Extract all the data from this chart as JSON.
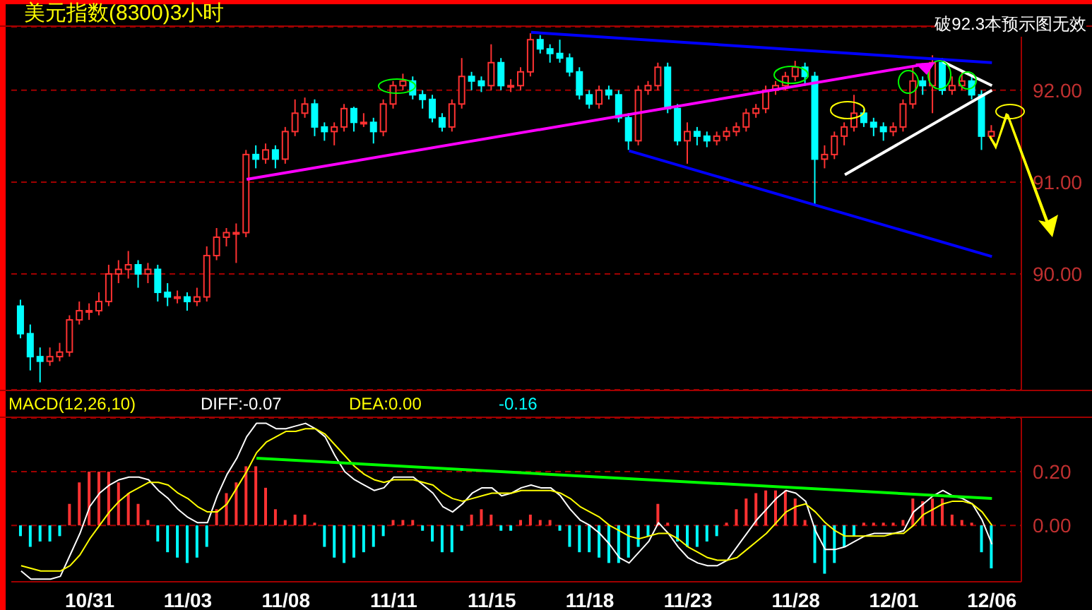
{
  "chart_data": [
    {
      "type": "candlestick",
      "title": "美元指数(8300)3小时",
      "annotations": [
        "破92.3本预示图无效"
      ],
      "categories": [
        null,
        null,
        null,
        null,
        null,
        null,
        null,
        null,
        null,
        null,
        null,
        null,
        null,
        null,
        null,
        null,
        null,
        null,
        null,
        null,
        null,
        null,
        null,
        null,
        null,
        null,
        null,
        null,
        null,
        null,
        null,
        null,
        null,
        null,
        null,
        null,
        null,
        null,
        null,
        null,
        null,
        null,
        null,
        null,
        null,
        null,
        null,
        null,
        null,
        null,
        null,
        null,
        null,
        null,
        null,
        null,
        null,
        null,
        null,
        null,
        null,
        null,
        null,
        null,
        null,
        null,
        null,
        null,
        null,
        null,
        null,
        null,
        null,
        null,
        null,
        null,
        null,
        null,
        null,
        null,
        null,
        null,
        null,
        null,
        null,
        null,
        null,
        null,
        null,
        null,
        null,
        null,
        null,
        null,
        null,
        null,
        null,
        null,
        null,
        null
      ],
      "ohlc": [
        [
          89.65,
          89.72,
          89.3,
          89.35
        ],
        [
          89.35,
          89.45,
          88.95,
          89.1
        ],
        [
          89.1,
          89.2,
          88.82,
          89.05
        ],
        [
          89.05,
          89.2,
          89.0,
          89.1
        ],
        [
          89.1,
          89.25,
          89.05,
          89.15
        ],
        [
          89.15,
          89.55,
          89.1,
          89.5
        ],
        [
          89.5,
          89.7,
          89.45,
          89.6
        ],
        [
          89.6,
          89.68,
          89.5,
          89.6
        ],
        [
          89.6,
          89.8,
          89.55,
          89.7
        ],
        [
          89.7,
          90.1,
          89.65,
          90.0
        ],
        [
          90.0,
          90.15,
          89.9,
          90.05
        ],
        [
          90.05,
          90.25,
          89.95,
          90.1
        ],
        [
          90.1,
          90.15,
          89.85,
          90.0
        ],
        [
          90.0,
          90.12,
          89.9,
          90.05
        ],
        [
          90.05,
          90.1,
          89.7,
          89.8
        ],
        [
          89.8,
          89.9,
          89.65,
          89.75
        ],
        [
          89.75,
          89.82,
          89.68,
          89.75
        ],
        [
          89.75,
          89.8,
          89.6,
          89.7
        ],
        [
          89.7,
          89.85,
          89.65,
          89.75
        ],
        [
          89.75,
          90.3,
          89.7,
          90.2
        ],
        [
          90.2,
          90.5,
          90.15,
          90.4
        ],
        [
          90.4,
          90.5,
          90.3,
          90.45
        ],
        [
          90.45,
          90.55,
          90.12,
          90.45
        ],
        [
          90.45,
          91.35,
          90.4,
          91.3
        ],
        [
          91.3,
          91.4,
          91.15,
          91.25
        ],
        [
          91.25,
          91.42,
          91.2,
          91.35
        ],
        [
          91.35,
          91.4,
          91.15,
          91.25
        ],
        [
          91.25,
          91.6,
          91.2,
          91.55
        ],
        [
          91.55,
          91.9,
          91.5,
          91.75
        ],
        [
          91.75,
          91.92,
          91.7,
          91.85
        ],
        [
          91.85,
          91.9,
          91.5,
          91.6
        ],
        [
          91.6,
          91.65,
          91.45,
          91.55
        ],
        [
          91.55,
          91.65,
          91.4,
          91.6
        ],
        [
          91.6,
          91.85,
          91.55,
          91.8
        ],
        [
          91.8,
          91.82,
          91.55,
          91.65
        ],
        [
          91.65,
          91.75,
          91.6,
          91.65
        ],
        [
          91.65,
          91.7,
          91.42,
          91.55
        ],
        [
          91.55,
          91.9,
          91.5,
          91.85
        ],
        [
          91.85,
          92.1,
          91.8,
          92.05
        ],
        [
          92.05,
          92.18,
          92.0,
          92.1
        ],
        [
          92.1,
          92.15,
          91.9,
          91.95
        ],
        [
          91.95,
          92.0,
          91.8,
          91.9
        ],
        [
          91.9,
          91.95,
          91.65,
          91.7
        ],
        [
          91.7,
          91.75,
          91.55,
          91.6
        ],
        [
          91.6,
          91.9,
          91.55,
          91.85
        ],
        [
          91.85,
          92.35,
          91.8,
          92.15
        ],
        [
          92.15,
          92.2,
          92.0,
          92.1
        ],
        [
          92.1,
          92.15,
          91.98,
          92.05
        ],
        [
          92.05,
          92.5,
          92.0,
          92.3
        ],
        [
          92.3,
          92.35,
          92.0,
          92.05
        ],
        [
          92.05,
          92.12,
          91.98,
          92.05
        ],
        [
          92.05,
          92.25,
          92.0,
          92.2
        ],
        [
          92.2,
          92.62,
          92.15,
          92.55
        ],
        [
          92.55,
          92.6,
          92.4,
          92.45
        ],
        [
          92.45,
          92.5,
          92.3,
          92.4
        ],
        [
          92.4,
          92.55,
          92.3,
          92.35
        ],
        [
          92.35,
          92.4,
          92.15,
          92.2
        ],
        [
          92.2,
          92.25,
          91.9,
          91.95
        ],
        [
          91.95,
          92.0,
          91.8,
          91.85
        ],
        [
          91.85,
          92.05,
          91.8,
          92.0
        ],
        [
          92.0,
          92.05,
          91.9,
          91.95
        ],
        [
          91.95,
          92.0,
          91.65,
          91.7
        ],
        [
          91.7,
          91.75,
          91.35,
          91.45
        ],
        [
          91.45,
          92.05,
          91.4,
          92.0
        ],
        [
          92.0,
          92.1,
          91.95,
          92.05
        ],
        [
          92.05,
          92.3,
          92.0,
          92.25
        ],
        [
          92.25,
          92.3,
          91.75,
          91.8
        ],
        [
          91.8,
          91.85,
          91.4,
          91.45
        ],
        [
          91.45,
          91.65,
          91.2,
          91.55
        ],
        [
          91.55,
          91.6,
          91.4,
          91.5
        ],
        [
          91.5,
          91.55,
          91.38,
          91.45
        ],
        [
          91.45,
          91.55,
          91.4,
          91.5
        ],
        [
          91.5,
          91.6,
          91.45,
          91.55
        ],
        [
          91.55,
          91.65,
          91.5,
          91.6
        ],
        [
          91.6,
          91.8,
          91.55,
          91.75
        ],
        [
          91.75,
          91.85,
          91.7,
          91.8
        ],
        [
          91.8,
          92.05,
          91.75,
          92.0
        ],
        [
          92.0,
          92.1,
          91.95,
          92.05
        ],
        [
          92.05,
          92.2,
          92.0,
          92.15
        ],
        [
          92.15,
          92.32,
          92.1,
          92.25
        ],
        [
          92.25,
          92.3,
          92.05,
          92.15
        ],
        [
          92.15,
          92.2,
          90.75,
          91.25
        ],
        [
          91.25,
          91.4,
          91.15,
          91.3
        ],
        [
          91.3,
          91.55,
          91.25,
          91.5
        ],
        [
          91.5,
          91.65,
          91.4,
          91.6
        ],
        [
          91.6,
          91.95,
          91.55,
          91.75
        ],
        [
          91.75,
          91.8,
          91.6,
          91.65
        ],
        [
          91.65,
          91.7,
          91.5,
          91.6
        ],
        [
          91.6,
          91.65,
          91.45,
          91.55
        ],
        [
          91.55,
          91.65,
          91.5,
          91.6
        ],
        [
          91.6,
          91.9,
          91.55,
          91.85
        ],
        [
          91.85,
          92.25,
          91.8,
          92.1
        ],
        [
          92.1,
          92.15,
          91.95,
          92.05
        ],
        [
          92.05,
          92.38,
          91.75,
          92.3
        ],
        [
          92.3,
          92.35,
          91.95,
          92.0
        ],
        [
          92.0,
          92.15,
          91.95,
          92.05
        ],
        [
          92.05,
          92.2,
          92.0,
          92.1
        ],
        [
          92.1,
          92.15,
          91.9,
          91.95
        ],
        [
          91.95,
          92.0,
          91.35,
          91.5
        ],
        [
          91.5,
          91.62,
          91.45,
          91.55
        ]
      ],
      "series": [
        {
          "type": "line",
          "color": "#0000ff",
          "values": [
            null,
            null,
            null,
            null,
            null,
            null,
            null,
            null,
            null,
            null,
            null,
            null,
            null,
            null,
            null,
            null,
            null,
            null,
            null,
            null,
            null,
            null,
            null,
            null,
            null,
            null,
            null,
            null,
            null,
            null,
            null,
            null,
            null,
            null,
            null,
            null,
            null,
            null,
            null,
            null,
            null,
            null,
            null,
            null,
            null,
            null,
            null,
            null,
            null,
            null,
            null,
            null,
            92.63,
            null,
            null,
            null,
            null,
            null,
            null,
            null,
            null,
            null,
            null,
            null,
            null,
            null,
            null,
            null,
            null,
            null,
            null,
            null,
            null,
            null,
            null,
            null,
            null,
            null,
            null,
            null,
            null,
            null,
            null,
            null,
            null,
            null,
            null,
            null,
            null,
            null,
            null,
            null,
            null,
            null,
            null,
            null,
            null,
            null,
            null,
            92.3
          ]
        },
        {
          "type": "line",
          "color": "#0000ff",
          "values": [
            null,
            null,
            null,
            null,
            null,
            null,
            null,
            null,
            null,
            null,
            null,
            null,
            null,
            null,
            null,
            null,
            null,
            null,
            null,
            null,
            null,
            null,
            null,
            null,
            null,
            null,
            null,
            null,
            null,
            null,
            null,
            null,
            null,
            null,
            null,
            null,
            null,
            null,
            null,
            null,
            null,
            null,
            null,
            null,
            null,
            null,
            null,
            null,
            null,
            null,
            null,
            null,
            null,
            null,
            null,
            null,
            null,
            null,
            null,
            null,
            null,
            null,
            91.34,
            null,
            null,
            null,
            null,
            null,
            null,
            null,
            null,
            null,
            null,
            null,
            null,
            null,
            null,
            null,
            null,
            null,
            null,
            null,
            null,
            null,
            null,
            null,
            null,
            null,
            null,
            null,
            null,
            null,
            null,
            null,
            null,
            null,
            null,
            null,
            null,
            90.19
          ]
        },
        {
          "type": "line",
          "color": "#ff00ff",
          "values": [
            null,
            null,
            null,
            null,
            null,
            null,
            null,
            null,
            null,
            null,
            null,
            null,
            null,
            null,
            null,
            null,
            null,
            null,
            null,
            null,
            null,
            null,
            null,
            91.03,
            null,
            null,
            null,
            null,
            null,
            null,
            null,
            null,
            null,
            null,
            null,
            null,
            null,
            null,
            null,
            null,
            null,
            null,
            null,
            null,
            null,
            null,
            null,
            null,
            null,
            null,
            null,
            null,
            null,
            null,
            null,
            null,
            null,
            null,
            null,
            null,
            null,
            null,
            null,
            null,
            null,
            null,
            null,
            null,
            null,
            null,
            null,
            null,
            null,
            null,
            null,
            null,
            null,
            null,
            null,
            null,
            null,
            null,
            null,
            null,
            null,
            null,
            null,
            null,
            null,
            null,
            null,
            null,
            92.28,
            null,
            null,
            null,
            null,
            null,
            null,
            null
          ]
        },
        {
          "type": "line",
          "color": "#ffffff",
          "values": [
            null,
            null,
            null,
            null,
            null,
            null,
            null,
            null,
            null,
            null,
            null,
            null,
            null,
            null,
            null,
            null,
            null,
            null,
            null,
            null,
            null,
            null,
            null,
            null,
            null,
            null,
            null,
            null,
            null,
            null,
            null,
            null,
            null,
            null,
            null,
            null,
            null,
            null,
            null,
            null,
            null,
            null,
            null,
            null,
            null,
            null,
            null,
            null,
            null,
            null,
            null,
            null,
            null,
            null,
            null,
            null,
            null,
            null,
            null,
            null,
            null,
            null,
            null,
            null,
            null,
            null,
            null,
            null,
            null,
            null,
            null,
            null,
            null,
            null,
            null,
            null,
            null,
            null,
            null,
            null,
            null,
            null,
            null,
            null,
            91.08,
            null,
            null,
            null,
            null,
            null,
            null,
            null,
            null,
            null,
            null,
            null,
            null,
            null,
            null,
            92.0
          ]
        },
        {
          "type": "line",
          "color": "#ffffff",
          "values": [
            null,
            null,
            null,
            null,
            null,
            null,
            null,
            null,
            null,
            null,
            null,
            null,
            null,
            null,
            null,
            null,
            null,
            null,
            null,
            null,
            null,
            null,
            null,
            null,
            null,
            null,
            null,
            null,
            null,
            null,
            null,
            null,
            null,
            null,
            null,
            null,
            null,
            null,
            null,
            null,
            null,
            null,
            null,
            null,
            null,
            null,
            null,
            null,
            null,
            null,
            null,
            null,
            null,
            null,
            null,
            null,
            null,
            null,
            null,
            null,
            null,
            null,
            null,
            null,
            null,
            null,
            null,
            null,
            null,
            null,
            null,
            null,
            null,
            null,
            null,
            null,
            null,
            null,
            null,
            null,
            null,
            null,
            null,
            null,
            null,
            null,
            null,
            null,
            null,
            null,
            null,
            null,
            null,
            null,
            92.31,
            null,
            null,
            null,
            null,
            92.05
          ]
        }
      ],
      "ylim": [
        88.74,
        92.69
      ],
      "yticks": [
        {
          "value": 90,
          "label": "90.00"
        },
        {
          "value": 91,
          "label": "91.00"
        },
        {
          "value": 92,
          "label": "92.00"
        }
      ],
      "grid": "y",
      "tick_labels": "y"
    },
    {
      "type": "bar",
      "annotations": [
        "MACD(12,26,10)",
        "DIFF:-0.07",
        "DEA:0.00",
        "-0.16"
      ],
      "categories": [
        null,
        null,
        null,
        null,
        null,
        null,
        null,
        "10/31",
        null,
        null,
        null,
        null,
        null,
        null,
        null,
        null,
        null,
        "11/03",
        null,
        null,
        null,
        null,
        null,
        null,
        null,
        null,
        null,
        "11/08",
        null,
        null,
        null,
        null,
        null,
        null,
        null,
        null,
        null,
        null,
        "11/11",
        null,
        null,
        null,
        null,
        null,
        null,
        null,
        null,
        null,
        "11/15",
        null,
        null,
        null,
        null,
        null,
        null,
        null,
        null,
        null,
        "11/18",
        null,
        null,
        null,
        null,
        null,
        null,
        null,
        null,
        null,
        "11/23",
        null,
        null,
        null,
        null,
        null,
        null,
        null,
        null,
        null,
        null,
        "11/28",
        null,
        null,
        null,
        null,
        null,
        null,
        null,
        null,
        null,
        "12/01",
        null,
        null,
        null,
        null,
        null,
        null,
        null,
        null,
        null,
        "12/06"
      ],
      "series": [
        {
          "type": "bar",
          "values": [
            -0.04,
            -0.08,
            -0.06,
            -0.06,
            -0.04,
            0.08,
            0.16,
            0.2,
            0.2,
            0.2,
            0.16,
            0.12,
            0.08,
            0.02,
            -0.06,
            -0.1,
            -0.12,
            -0.14,
            -0.12,
            -0.08,
            0.06,
            0.12,
            0.16,
            0.22,
            0.22,
            0.14,
            0.06,
            0.02,
            0.04,
            0.04,
            0.01,
            -0.08,
            -0.12,
            -0.14,
            -0.12,
            -0.1,
            -0.08,
            -0.04,
            0.02,
            0.02,
            0.02,
            -0.02,
            -0.06,
            -0.1,
            -0.1,
            -0.02,
            0.04,
            0.06,
            0.04,
            -0.02,
            -0.02,
            0.02,
            0.04,
            0.02,
            0.02,
            -0.02,
            -0.08,
            -0.1,
            -0.1,
            -0.12,
            -0.14,
            -0.14,
            -0.12,
            -0.08,
            -0.04,
            0.08,
            0.01,
            -0.06,
            -0.08,
            -0.08,
            -0.06,
            -0.04,
            0.01,
            0.06,
            0.1,
            0.12,
            0.13,
            0.13,
            0.13,
            0.1,
            0.02,
            -0.14,
            -0.18,
            -0.14,
            -0.08,
            -0.04,
            0.01,
            0.01,
            0.01,
            0.01,
            0.02,
            0.1,
            0.09,
            0.1,
            0.1,
            0.04,
            0.02,
            0.01,
            -0.1,
            -0.16
          ],
          "colors": [
            "#00ffff",
            "#00ffff",
            "#00ffff",
            "#00ffff",
            "#00ffff",
            "#ff3232",
            "#ff3232",
            "#ff3232",
            "#ff3232",
            "#ff3232",
            "#ff3232",
            "#ff3232",
            "#ff3232",
            "#ff3232",
            "#00ffff",
            "#00ffff",
            "#00ffff",
            "#00ffff",
            "#00ffff",
            "#00ffff",
            "#ff3232",
            "#ff3232",
            "#ff3232",
            "#ff3232",
            "#ff3232",
            "#ff3232",
            "#ff3232",
            "#ff3232",
            "#ff3232",
            "#ff3232",
            "#ff3232",
            "#00ffff",
            "#00ffff",
            "#00ffff",
            "#00ffff",
            "#00ffff",
            "#00ffff",
            "#00ffff",
            "#ff3232",
            "#ff3232",
            "#ff3232",
            "#00ffff",
            "#00ffff",
            "#00ffff",
            "#00ffff",
            "#00ffff",
            "#ff3232",
            "#ff3232",
            "#ff3232",
            "#00ffff",
            "#00ffff",
            "#ff3232",
            "#ff3232",
            "#ff3232",
            "#ff3232",
            "#00ffff",
            "#00ffff",
            "#00ffff",
            "#00ffff",
            "#00ffff",
            "#00ffff",
            "#00ffff",
            "#00ffff",
            "#00ffff",
            "#00ffff",
            "#ff3232",
            "#ff3232",
            "#00ffff",
            "#00ffff",
            "#00ffff",
            "#00ffff",
            "#00ffff",
            "#ff3232",
            "#ff3232",
            "#ff3232",
            "#ff3232",
            "#ff3232",
            "#ff3232",
            "#ff3232",
            "#ff3232",
            "#ff3232",
            "#00ffff",
            "#00ffff",
            "#00ffff",
            "#00ffff",
            "#00ffff",
            "#ff3232",
            "#ff3232",
            "#ff3232",
            "#ff3232",
            "#ff3232",
            "#ff3232",
            "#ff3232",
            "#ff3232",
            "#ff3232",
            "#ff3232",
            "#ff3232",
            "#ff3232",
            "#00ffff",
            "#00ffff"
          ]
        },
        {
          "type": "line",
          "color": "#ffffff",
          "values": [
            -0.17,
            -0.2,
            -0.2,
            -0.2,
            -0.19,
            -0.11,
            -0.03,
            0.07,
            0.12,
            0.15,
            0.17,
            0.18,
            0.18,
            0.17,
            0.13,
            0.1,
            0.06,
            0.03,
            0.01,
            0.01,
            0.11,
            0.19,
            0.25,
            0.33,
            0.38,
            0.38,
            0.36,
            0.36,
            0.37,
            0.38,
            0.36,
            0.33,
            0.26,
            0.2,
            0.17,
            0.15,
            0.13,
            0.14,
            0.18,
            0.18,
            0.18,
            0.15,
            0.12,
            0.07,
            0.05,
            0.08,
            0.12,
            0.14,
            0.14,
            0.11,
            0.12,
            0.14,
            0.15,
            0.14,
            0.14,
            0.11,
            0.06,
            0.02,
            0.0,
            -0.03,
            -0.07,
            -0.12,
            -0.14,
            -0.1,
            -0.06,
            0.01,
            -0.03,
            -0.08,
            -0.12,
            -0.14,
            -0.15,
            -0.15,
            -0.13,
            -0.08,
            -0.03,
            0.02,
            0.06,
            0.1,
            0.13,
            0.12,
            0.09,
            -0.02,
            -0.09,
            -0.09,
            -0.08,
            -0.06,
            -0.04,
            -0.03,
            -0.03,
            -0.03,
            -0.02,
            0.05,
            0.08,
            0.11,
            0.13,
            0.11,
            0.1,
            0.08,
            0.02,
            -0.07
          ]
        },
        {
          "type": "line",
          "color": "#ffff00",
          "values": [
            -0.15,
            -0.16,
            -0.17,
            -0.17,
            -0.17,
            -0.15,
            -0.11,
            -0.05,
            0.0,
            0.05,
            0.09,
            0.12,
            0.14,
            0.16,
            0.16,
            0.15,
            0.12,
            0.1,
            0.07,
            0.05,
            0.05,
            0.08,
            0.14,
            0.2,
            0.27,
            0.31,
            0.33,
            0.35,
            0.35,
            0.36,
            0.36,
            0.34,
            0.3,
            0.26,
            0.22,
            0.19,
            0.17,
            0.16,
            0.17,
            0.17,
            0.17,
            0.16,
            0.15,
            0.12,
            0.1,
            0.09,
            0.1,
            0.11,
            0.12,
            0.12,
            0.12,
            0.13,
            0.13,
            0.13,
            0.13,
            0.12,
            0.1,
            0.07,
            0.05,
            0.03,
            0.0,
            -0.02,
            -0.04,
            -0.05,
            -0.04,
            -0.03,
            -0.03,
            -0.05,
            -0.08,
            -0.1,
            -0.12,
            -0.13,
            -0.13,
            -0.12,
            -0.09,
            -0.06,
            -0.03,
            0.01,
            0.05,
            0.07,
            0.08,
            0.05,
            0.01,
            -0.02,
            -0.04,
            -0.04,
            -0.04,
            -0.04,
            -0.04,
            -0.03,
            -0.03,
            0.0,
            0.04,
            0.06,
            0.08,
            0.09,
            0.09,
            0.08,
            0.05,
            0.0
          ]
        },
        {
          "type": "line",
          "color": "#00ff00",
          "values": [
            null,
            null,
            null,
            null,
            null,
            null,
            null,
            null,
            null,
            null,
            null,
            null,
            null,
            null,
            null,
            null,
            null,
            null,
            null,
            null,
            null,
            null,
            null,
            null,
            0.25,
            null,
            null,
            null,
            null,
            null,
            null,
            null,
            null,
            null,
            null,
            null,
            null,
            null,
            null,
            null,
            null,
            null,
            null,
            null,
            null,
            null,
            null,
            null,
            null,
            null,
            null,
            null,
            null,
            null,
            null,
            null,
            null,
            null,
            null,
            null,
            null,
            null,
            null,
            null,
            null,
            null,
            null,
            null,
            null,
            null,
            null,
            null,
            null,
            null,
            null,
            null,
            null,
            null,
            null,
            null,
            null,
            null,
            null,
            null,
            null,
            null,
            null,
            null,
            null,
            null,
            null,
            null,
            null,
            null,
            null,
            null,
            null,
            null,
            null,
            0.1
          ]
        }
      ],
      "ylim": [
        -0.21,
        0.4
      ],
      "yticks": [
        {
          "value": 0,
          "label": "0.00"
        },
        {
          "value": 0.2,
          "label": "0.20"
        }
      ],
      "grid": "y"
    }
  ]
}
